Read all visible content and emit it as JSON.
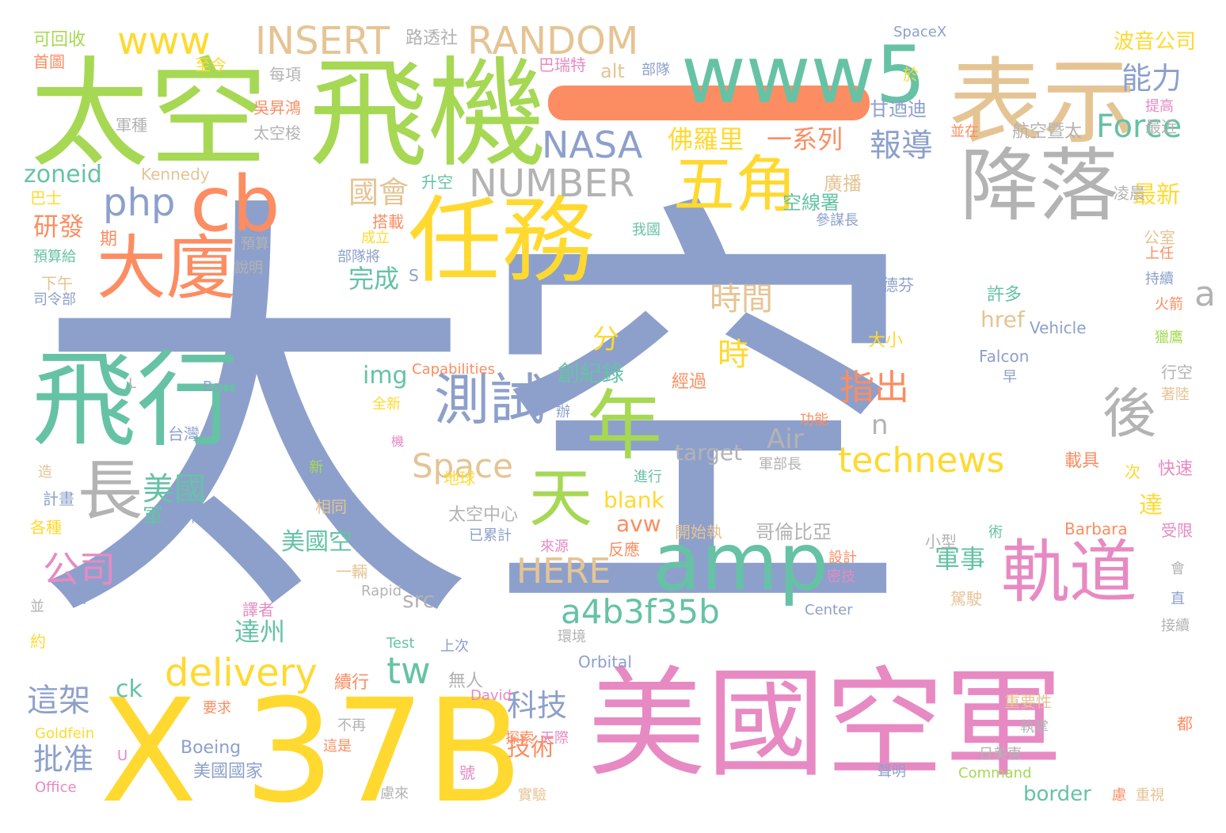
{
  "palette": {
    "periwinkle": "#8da0cb",
    "green": "#a6d854",
    "yellow": "#ffd92f",
    "pink": "#e78ac3",
    "teal": "#66c2a5",
    "orange": "#fc8d62",
    "tan": "#e5c494",
    "gray": "#b3b3b3"
  },
  "words": [
    {
      "text": "太空",
      "color": "#8da0cb"
    },
    {
      "text": "太空",
      "color": "#a6d854"
    },
    {
      "text": "飛機",
      "color": "#a6d854"
    },
    {
      "text": "一",
      "color": "#fc8d62"
    },
    {
      "text": "表示",
      "color": "#e5c494"
    },
    {
      "text": "降落",
      "color": "#b3b3b3"
    },
    {
      "text": "任務",
      "color": "#ffd92f"
    },
    {
      "text": "飛行",
      "color": "#66c2a5"
    },
    {
      "text": "美國空軍",
      "color": "#e78ac3"
    },
    {
      "text": "X",
      "color": "#ffd92f"
    },
    {
      "text": "37B",
      "color": "#ffd92f"
    },
    {
      "text": "www5",
      "color": "#66c2a5"
    },
    {
      "text": "cb",
      "color": "#fc8d62"
    },
    {
      "text": "大廈",
      "color": "#fc8d62"
    },
    {
      "text": "年",
      "color": "#a6d854"
    },
    {
      "text": "天",
      "color": "#a6d854"
    },
    {
      "text": "amp",
      "color": "#66c2a5"
    },
    {
      "text": "軌道",
      "color": "#e78ac3"
    },
    {
      "text": "五角",
      "color": "#ffd92f"
    },
    {
      "text": "長",
      "color": "#b3b3b3"
    },
    {
      "text": "測試",
      "color": "#8da0cb"
    },
    {
      "text": "後",
      "color": "#b3b3b3"
    },
    {
      "text": "www",
      "color": "#ffd92f"
    },
    {
      "text": "INSERT",
      "color": "#e5c494"
    },
    {
      "text": "RANDOM",
      "color": "#e5c494"
    },
    {
      "text": "NASA",
      "color": "#8da0cb"
    },
    {
      "text": "NUMBER",
      "color": "#b3b3b3"
    },
    {
      "text": "php",
      "color": "#8da0cb"
    },
    {
      "text": "technews",
      "color": "#ffd92f"
    },
    {
      "text": "delivery",
      "color": "#ffd92f"
    },
    {
      "text": "a4b3f35b",
      "color": "#66c2a5"
    },
    {
      "text": "a",
      "color": "#b3b3b3"
    },
    {
      "text": "Space",
      "color": "#e5c494"
    },
    {
      "text": "HERE",
      "color": "#e5c494"
    },
    {
      "text": "Force",
      "color": "#66c2a5"
    },
    {
      "text": "tw",
      "color": "#66c2a5"
    },
    {
      "text": "Air",
      "color": "#b3b3b3"
    },
    {
      "text": "能力",
      "color": "#8da0cb"
    },
    {
      "text": "報導",
      "color": "#8da0cb"
    },
    {
      "text": "國會",
      "color": "#e5c494"
    },
    {
      "text": "佛羅里",
      "color": "#ffd92f"
    },
    {
      "text": "一系列",
      "color": "#fc8d62"
    },
    {
      "text": "時間",
      "color": "#e5c494"
    },
    {
      "text": "時",
      "color": "#ffd92f"
    },
    {
      "text": "分",
      "color": "#ffd92f"
    },
    {
      "text": "指出",
      "color": "#fc8d62"
    },
    {
      "text": "n",
      "color": "#b3b3b3"
    },
    {
      "text": "創紀錄",
      "color": "#66c2a5"
    },
    {
      "text": "公司",
      "color": "#e78ac3"
    },
    {
      "text": "美國",
      "color": "#66c2a5"
    },
    {
      "text": "研發",
      "color": "#fc8d62"
    },
    {
      "text": "完成",
      "color": "#66c2a5"
    },
    {
      "text": "這架",
      "color": "#8da0cb"
    },
    {
      "text": "批准",
      "color": "#8da0cb"
    },
    {
      "text": "科技",
      "color": "#8da0cb"
    },
    {
      "text": "技術",
      "color": "#fc8d62"
    },
    {
      "text": "美國空",
      "color": "#66c2a5"
    },
    {
      "text": "軍事",
      "color": "#66c2a5"
    },
    {
      "text": "達州",
      "color": "#66c2a5"
    },
    {
      "text": "最新",
      "color": "#ffd92f"
    },
    {
      "text": "zoneid",
      "color": "#66c2a5"
    },
    {
      "text": "img",
      "color": "#66c2a5"
    },
    {
      "text": "target",
      "color": "#b3b3b3"
    },
    {
      "text": "href",
      "color": "#e5c494"
    },
    {
      "text": "blank",
      "color": "#ffd92f"
    },
    {
      "text": "avw",
      "color": "#fc8d62"
    },
    {
      "text": "src",
      "color": "#b3b3b3"
    },
    {
      "text": "ck",
      "color": "#66c2a5"
    },
    {
      "text": "border",
      "color": "#66c2a5"
    },
    {
      "text": "alt",
      "color": "#e5c494"
    },
    {
      "text": "軍",
      "color": "#66c2a5"
    },
    {
      "text": "達",
      "color": "#ffd92f"
    },
    {
      "text": "SpaceX",
      "color": "#8da0cb"
    },
    {
      "text": "路透社",
      "color": "#b3b3b3"
    },
    {
      "text": "波音公司",
      "color": "#ffd92f"
    },
    {
      "text": "可回收",
      "color": "#a6d854"
    },
    {
      "text": "首圖",
      "color": "#fc8d62"
    },
    {
      "text": "至今",
      "color": "#ffd92f"
    },
    {
      "text": "巴瑞特",
      "color": "#e78ac3"
    },
    {
      "text": "部隊",
      "color": "#8da0cb"
    },
    {
      "text": "於",
      "color": "#ffd92f"
    },
    {
      "text": "每項",
      "color": "#b3b3b3"
    },
    {
      "text": "吳昇鴻",
      "color": "#fc8d62"
    },
    {
      "text": "甘迺迪",
      "color": "#8da0cb"
    },
    {
      "text": "提高",
      "color": "#e78ac3"
    },
    {
      "text": "軍種",
      "color": "#b3b3b3"
    },
    {
      "text": "太空梭",
      "color": "#b3b3b3"
    },
    {
      "text": "並在",
      "color": "#fc8d62"
    },
    {
      "text": "航空暨太",
      "color": "#b3b3b3"
    },
    {
      "text": "最近",
      "color": "#b3b3b3"
    },
    {
      "text": "Kennedy",
      "color": "#e5c494"
    },
    {
      "text": "升空",
      "color": "#66c2a5"
    },
    {
      "text": "廣播",
      "color": "#e5c494"
    },
    {
      "text": "凌晨",
      "color": "#b3b3b3"
    },
    {
      "text": "巴士",
      "color": "#ffd92f"
    },
    {
      "text": "搭載",
      "color": "#fc8d62"
    },
    {
      "text": "空線署",
      "color": "#66c2a5"
    },
    {
      "text": "參謀長",
      "color": "#8da0cb"
    },
    {
      "text": "期",
      "color": "#fc8d62"
    },
    {
      "text": "我國",
      "color": "#66c2a5"
    },
    {
      "text": "成立",
      "color": "#ffd92f"
    },
    {
      "text": "預算",
      "color": "#b3b3b3"
    },
    {
      "text": "公室",
      "color": "#e5c494"
    },
    {
      "text": "預算給",
      "color": "#66c2a5"
    },
    {
      "text": "部隊將",
      "color": "#8da0cb"
    },
    {
      "text": "上任",
      "color": "#fc8d62"
    },
    {
      "text": "說明",
      "color": "#b3b3b3"
    },
    {
      "text": "下午",
      "color": "#e5c494"
    },
    {
      "text": "S",
      "color": "#8da0cb"
    },
    {
      "text": "持續",
      "color": "#8da0cb"
    },
    {
      "text": "司令部",
      "color": "#8da0cb"
    },
    {
      "text": "古德芬",
      "color": "#8da0cb"
    },
    {
      "text": "許多",
      "color": "#66c2a5"
    },
    {
      "text": "製",
      "color": "#8da0cb"
    },
    {
      "text": "火箭",
      "color": "#fc8d62"
    },
    {
      "text": "Vehicle",
      "color": "#8da0cb"
    },
    {
      "text": "獵鷹",
      "color": "#a6d854"
    },
    {
      "text": "大小",
      "color": "#ffd92f"
    },
    {
      "text": "Capabilities",
      "color": "#fc8d62"
    },
    {
      "text": "Falcon",
      "color": "#8da0cb"
    },
    {
      "text": "行空",
      "color": "#b3b3b3"
    },
    {
      "text": "L",
      "color": "#b3b3b3"
    },
    {
      "text": "Barrett",
      "color": "#8da0cb"
    },
    {
      "text": "經過",
      "color": "#fc8d62"
    },
    {
      "text": "早",
      "color": "#8da0cb"
    },
    {
      "text": "著陸",
      "color": "#e5c494"
    },
    {
      "text": "全新",
      "color": "#ffd92f"
    },
    {
      "text": "辦",
      "color": "#8da0cb"
    },
    {
      "text": "功能",
      "color": "#fc8d62"
    },
    {
      "text": "台灣",
      "color": "#8da0cb"
    },
    {
      "text": "機",
      "color": "#e78ac3"
    },
    {
      "text": "新",
      "color": "#a6d854"
    },
    {
      "text": "軍部長",
      "color": "#b3b3b3"
    },
    {
      "text": "載具",
      "color": "#fc8d62"
    },
    {
      "text": "造",
      "color": "#e5c494"
    },
    {
      "text": "地球",
      "color": "#ffd92f"
    },
    {
      "text": "進行",
      "color": "#66c2a5"
    },
    {
      "text": "次",
      "color": "#ffd92f"
    },
    {
      "text": "快速",
      "color": "#e78ac3"
    },
    {
      "text": "計畫",
      "color": "#8da0cb"
    },
    {
      "text": "相同",
      "color": "#e5c494"
    },
    {
      "text": "太空中心",
      "color": "#b3b3b3"
    },
    {
      "text": "下",
      "color": "#8da0cb"
    },
    {
      "text": "各種",
      "color": "#ffd92f"
    },
    {
      "text": "已累計",
      "color": "#8da0cb"
    },
    {
      "text": "開始執",
      "color": "#e5c494"
    },
    {
      "text": "哥倫比亞",
      "color": "#b3b3b3"
    },
    {
      "text": "術",
      "color": "#66c2a5"
    },
    {
      "text": "受限",
      "color": "#e78ac3"
    },
    {
      "text": "來源",
      "color": "#e78ac3"
    },
    {
      "text": "反應",
      "color": "#fc8d62"
    },
    {
      "text": "小型",
      "color": "#b3b3b3"
    },
    {
      "text": "Barbara",
      "color": "#fc8d62"
    },
    {
      "text": "一輛",
      "color": "#e5c494"
    },
    {
      "text": "設計",
      "color": "#fc8d62"
    },
    {
      "text": "會",
      "color": "#b3b3b3"
    },
    {
      "text": "日",
      "color": "#8da0cb"
    },
    {
      "text": "Rapid",
      "color": "#b3b3b3"
    },
    {
      "text": "密技",
      "color": "#e78ac3"
    },
    {
      "text": "駕駛",
      "color": "#e5c494"
    },
    {
      "text": "直",
      "color": "#8da0cb"
    },
    {
      "text": "並",
      "color": "#b3b3b3"
    },
    {
      "text": "譯者",
      "color": "#e78ac3"
    },
    {
      "text": "Center",
      "color": "#8da0cb"
    },
    {
      "text": "約",
      "color": "#ffd92f"
    },
    {
      "text": "Test",
      "color": "#66c2a5"
    },
    {
      "text": "上次",
      "color": "#8da0cb"
    },
    {
      "text": "環境",
      "color": "#b3b3b3"
    },
    {
      "text": "接續",
      "color": "#b3b3b3"
    },
    {
      "text": "Orbital",
      "color": "#8da0cb"
    },
    {
      "text": "續行",
      "color": "#fc8d62"
    },
    {
      "text": "無人",
      "color": "#b3b3b3"
    },
    {
      "text": "要求",
      "color": "#fc8d62"
    },
    {
      "text": "David",
      "color": "#e78ac3"
    },
    {
      "text": "重要性",
      "color": "#e5c494"
    },
    {
      "text": "Goldfein",
      "color": "#ffd92f"
    },
    {
      "text": "不再",
      "color": "#b3b3b3"
    },
    {
      "text": "探索",
      "color": "#fc8d62"
    },
    {
      "text": "天際",
      "color": "#e78ac3"
    },
    {
      "text": "都",
      "color": "#fc8d62"
    },
    {
      "text": "執掌",
      "color": "#b3b3b3"
    },
    {
      "text": "Boeing",
      "color": "#8da0cb"
    },
    {
      "text": "這是",
      "color": "#fc8d62"
    },
    {
      "text": "日美東",
      "color": "#b3b3b3"
    },
    {
      "text": "U",
      "color": "#e78ac3"
    },
    {
      "text": "美國國家",
      "color": "#8da0cb"
    },
    {
      "text": "號",
      "color": "#e78ac3"
    },
    {
      "text": "聲明",
      "color": "#8da0cb"
    },
    {
      "text": "Command",
      "color": "#a6d854"
    },
    {
      "text": "Office",
      "color": "#e78ac3"
    },
    {
      "text": "慮來",
      "color": "#b3b3b3"
    },
    {
      "text": "實驗",
      "color": "#e5c494"
    },
    {
      "text": "慮",
      "color": "#fc8d62"
    },
    {
      "text": "重視",
      "color": "#e5c494"
    }
  ]
}
